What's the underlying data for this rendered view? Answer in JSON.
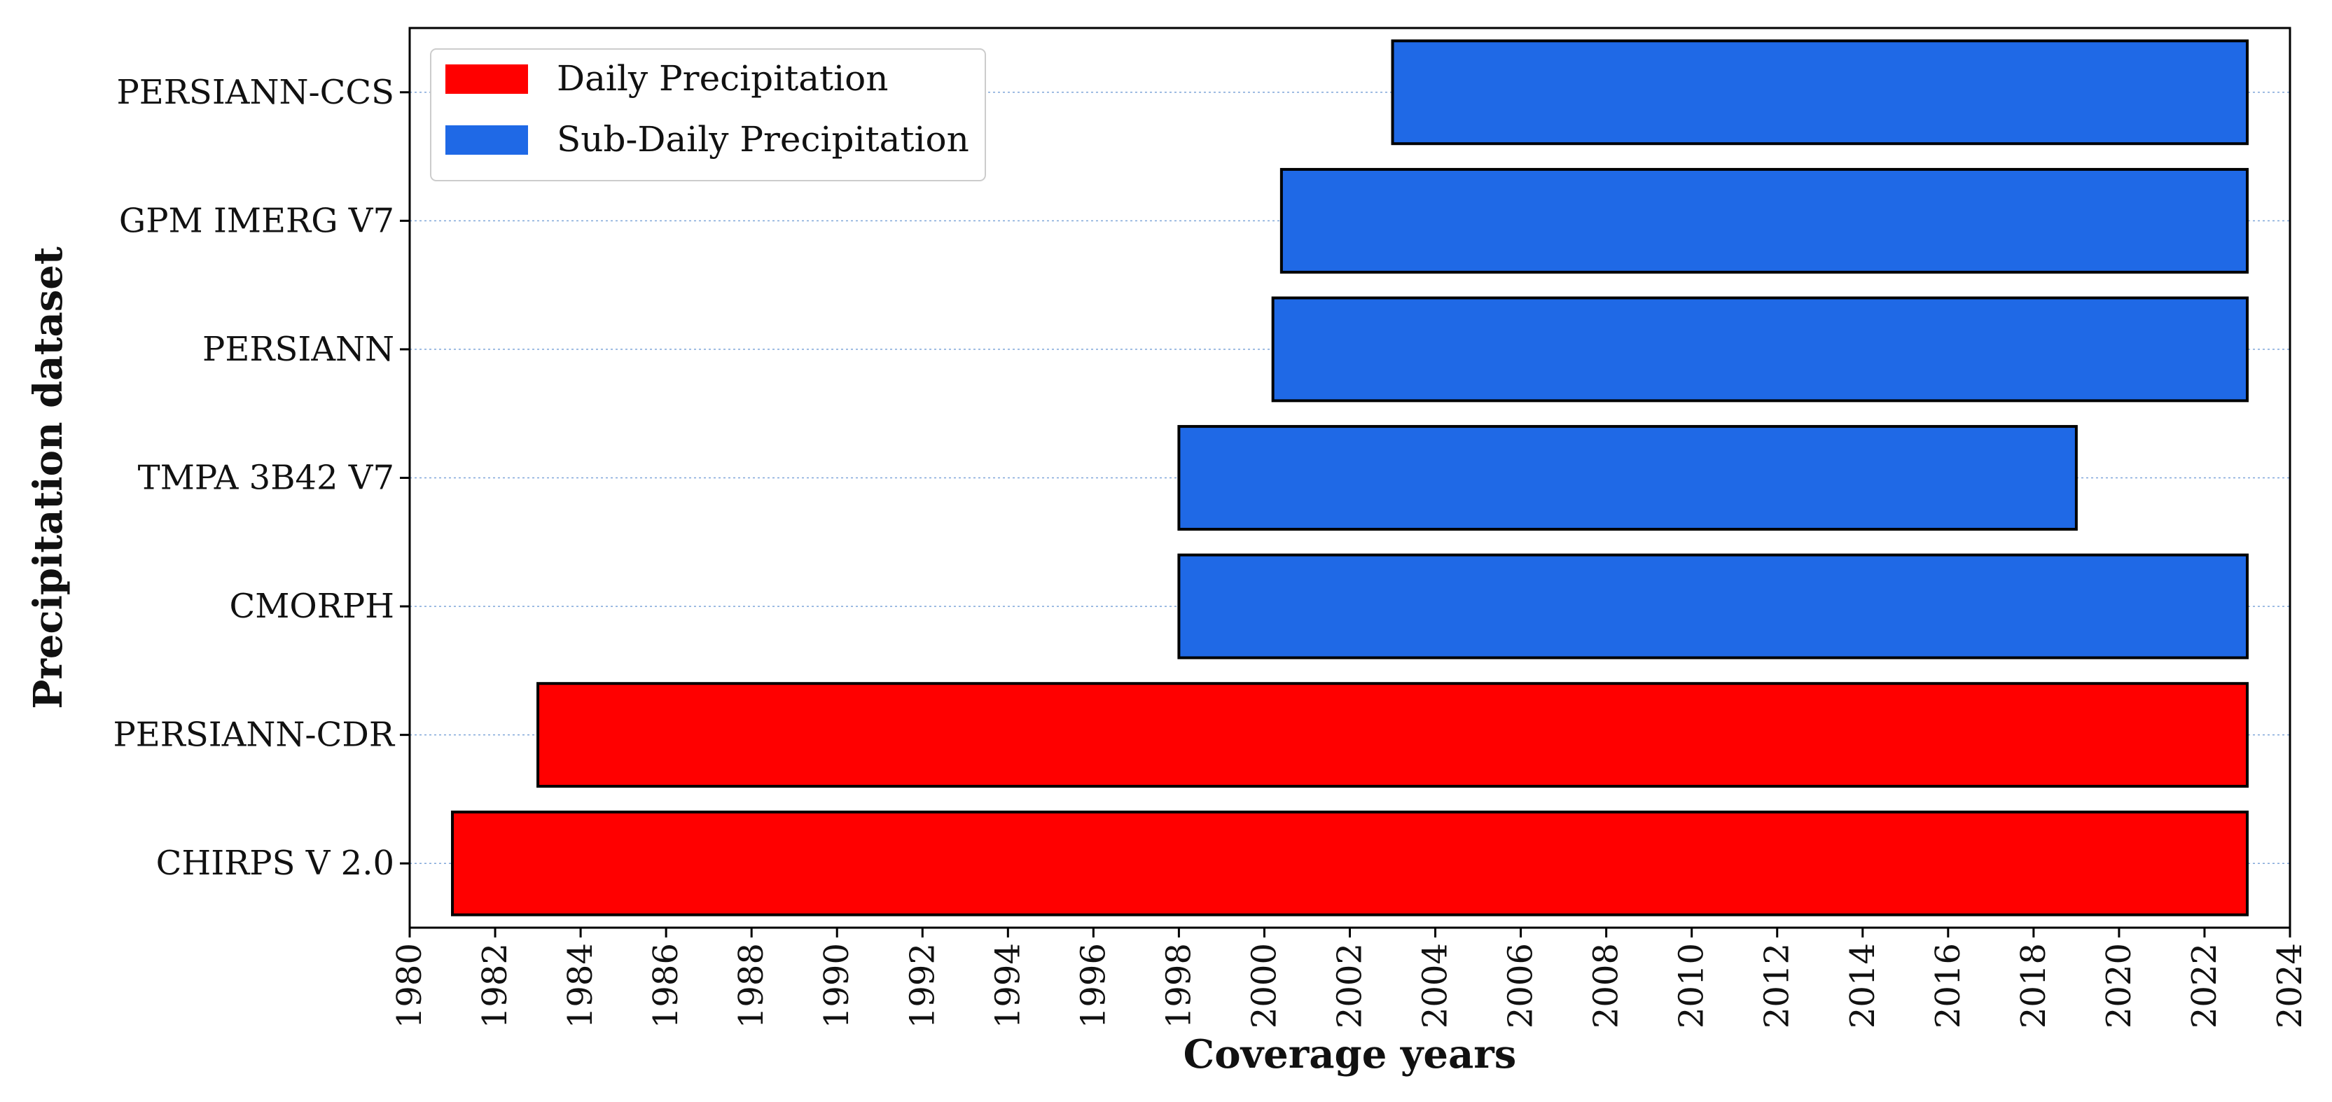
{
  "chart_data": {
    "type": "bar",
    "orientation": "horizontal",
    "title": "",
    "xlabel": "Coverage years",
    "ylabel": "Precipitation dataset",
    "xlim": [
      1980,
      2024
    ],
    "xticks": [
      "1980",
      "1982",
      "1984",
      "1986",
      "1988",
      "1990",
      "1992",
      "1994",
      "1996",
      "1998",
      "2000",
      "2002",
      "2004",
      "2006",
      "2008",
      "2010",
      "2012",
      "2014",
      "2016",
      "2018",
      "2020",
      "2022",
      "2024"
    ],
    "grid": "horizontal dotted",
    "legend_placement": "top-left",
    "legend": [
      {
        "label": "Daily Precipitation",
        "color": "#ff0000"
      },
      {
        "label": "Sub-Daily Precipitation",
        "color": "#1f69e6"
      }
    ],
    "series": [
      {
        "name": "CHIRPS V 2.0",
        "start": 1981.0,
        "end": 2023.0,
        "category": "Daily Precipitation"
      },
      {
        "name": "PERSIANN-CDR",
        "start": 1983.0,
        "end": 2023.0,
        "category": "Daily Precipitation"
      },
      {
        "name": "CMORPH",
        "start": 1998.0,
        "end": 2023.0,
        "category": "Sub-Daily Precipitation"
      },
      {
        "name": "TMPA 3B42 V7",
        "start": 1998.0,
        "end": 2019.0,
        "category": "Sub-Daily Precipitation"
      },
      {
        "name": "PERSIANN",
        "start": 2000.2,
        "end": 2023.0,
        "category": "Sub-Daily Precipitation"
      },
      {
        "name": "GPM IMERG V7",
        "start": 2000.4,
        "end": 2023.0,
        "category": "Sub-Daily Precipitation"
      },
      {
        "name": "PERSIANN-CCS",
        "start": 2003.0,
        "end": 2023.0,
        "category": "Sub-Daily Precipitation"
      }
    ]
  }
}
